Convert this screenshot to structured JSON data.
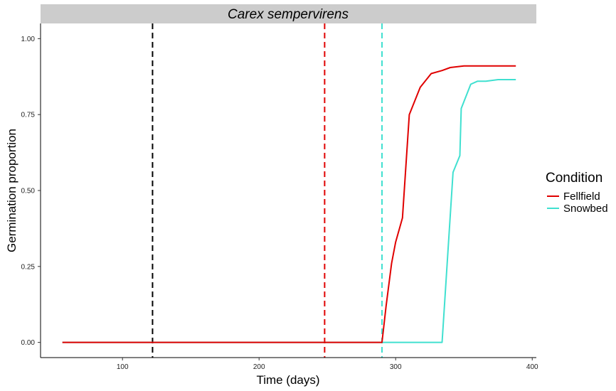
{
  "chart_data": {
    "type": "line",
    "title": "Carex sempervirens",
    "xlabel": "Time (days)",
    "ylabel": "Germination proportion",
    "xlim": [
      40,
      403
    ],
    "ylim": [
      -0.05,
      1.05
    ],
    "x_ticks": [
      100,
      200,
      300,
      400
    ],
    "y_ticks": [
      0.0,
      0.25,
      0.5,
      0.75,
      1.0
    ],
    "y_tick_labels": [
      "0.00",
      "0.25",
      "0.50",
      "0.75",
      "1.00"
    ],
    "grid": false,
    "legend": {
      "title": "Condition",
      "placement": "right",
      "entries": [
        "Fellfield",
        "Snowbed"
      ]
    },
    "series": [
      {
        "name": "Fellfield",
        "color": "#e00000",
        "x": [
          56,
          290,
          293,
          297,
          300,
          305,
          310,
          318,
          326,
          334,
          340,
          350,
          360,
          370,
          380,
          388
        ],
        "y": [
          0,
          0,
          0.12,
          0.26,
          0.33,
          0.41,
          0.75,
          0.84,
          0.885,
          0.895,
          0.905,
          0.91,
          0.91,
          0.91,
          0.91,
          0.91
        ]
      },
      {
        "name": "Snowbed",
        "color": "#40e0d0",
        "x": [
          56,
          100,
          200,
          300,
          334,
          342,
          347,
          348,
          355,
          360,
          366,
          375,
          388
        ],
        "y": [
          0,
          0,
          0,
          0,
          0,
          0.56,
          0.615,
          0.77,
          0.85,
          0.86,
          0.86,
          0.865,
          0.865
        ]
      }
    ],
    "vlines": [
      {
        "x": 122,
        "color": "#000000",
        "style": "dashed"
      },
      {
        "x": 248,
        "color": "#e00000",
        "style": "dashed"
      },
      {
        "x": 290,
        "color": "#40e0d0",
        "style": "dashed"
      }
    ]
  }
}
